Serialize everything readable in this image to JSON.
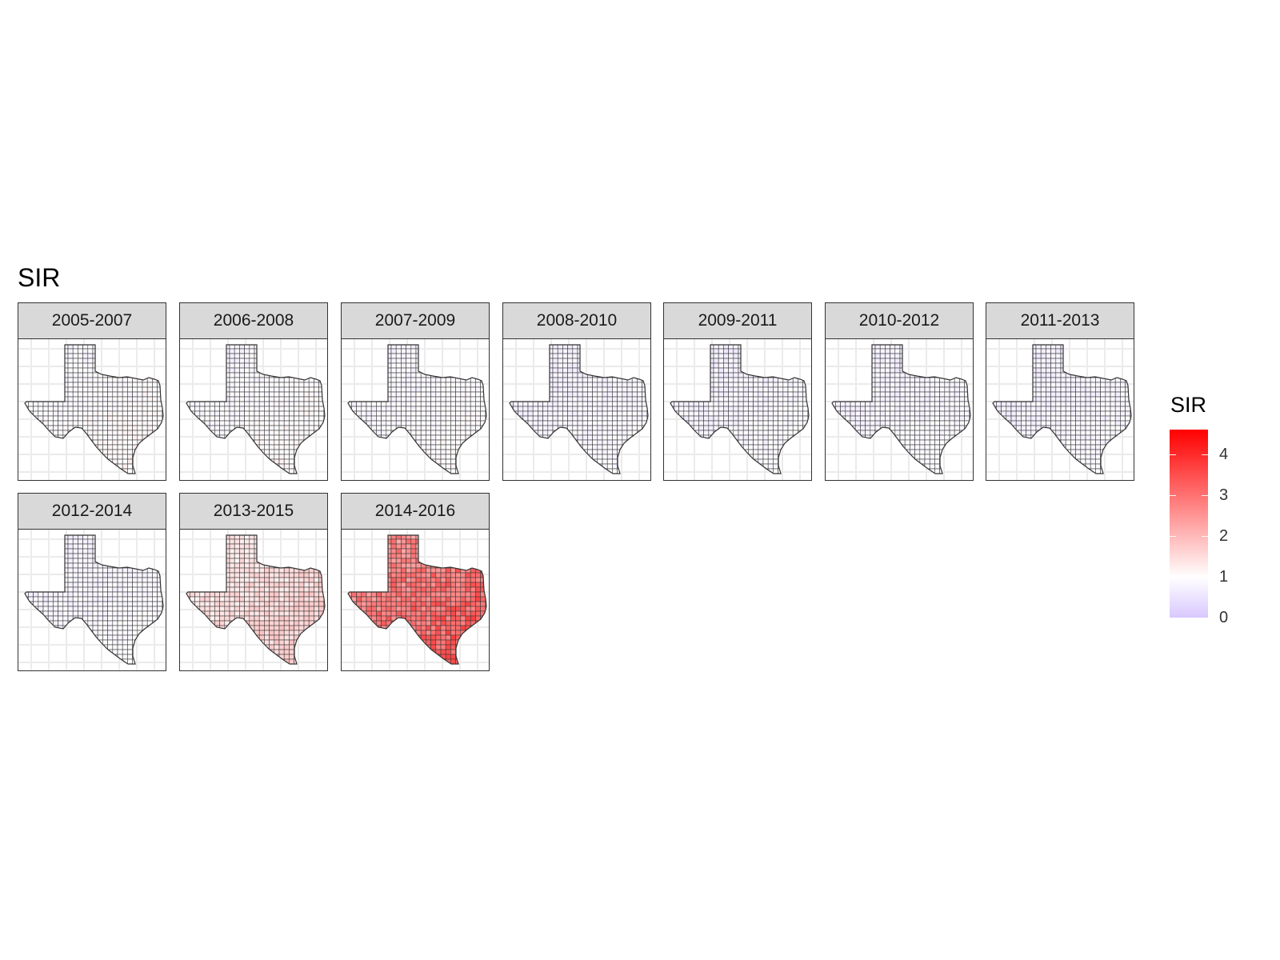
{
  "title": "SIR",
  "legend": {
    "title": "SIR",
    "ticks": [
      "0",
      "1",
      "2",
      "3",
      "4"
    ],
    "low_color": "#d9c8ff",
    "mid_color": "#ffffff",
    "high_color": "#ff0000",
    "range": [
      0,
      4.6
    ],
    "midpoint": 1
  },
  "panels": [
    {
      "label": "2005-2007",
      "sir_mean": 0.95
    },
    {
      "label": "2006-2008",
      "sir_mean": 0.93
    },
    {
      "label": "2007-2009",
      "sir_mean": 0.9
    },
    {
      "label": "2008-2010",
      "sir_mean": 0.8
    },
    {
      "label": "2009-2011",
      "sir_mean": 0.8
    },
    {
      "label": "2010-2012",
      "sir_mean": 0.82
    },
    {
      "label": "2011-2013",
      "sir_mean": 0.78
    },
    {
      "label": "2012-2014",
      "sir_mean": 0.83
    },
    {
      "label": "2013-2015",
      "sir_mean": 1.45
    },
    {
      "label": "2014-2016",
      "sir_mean": 2.9
    }
  ]
}
